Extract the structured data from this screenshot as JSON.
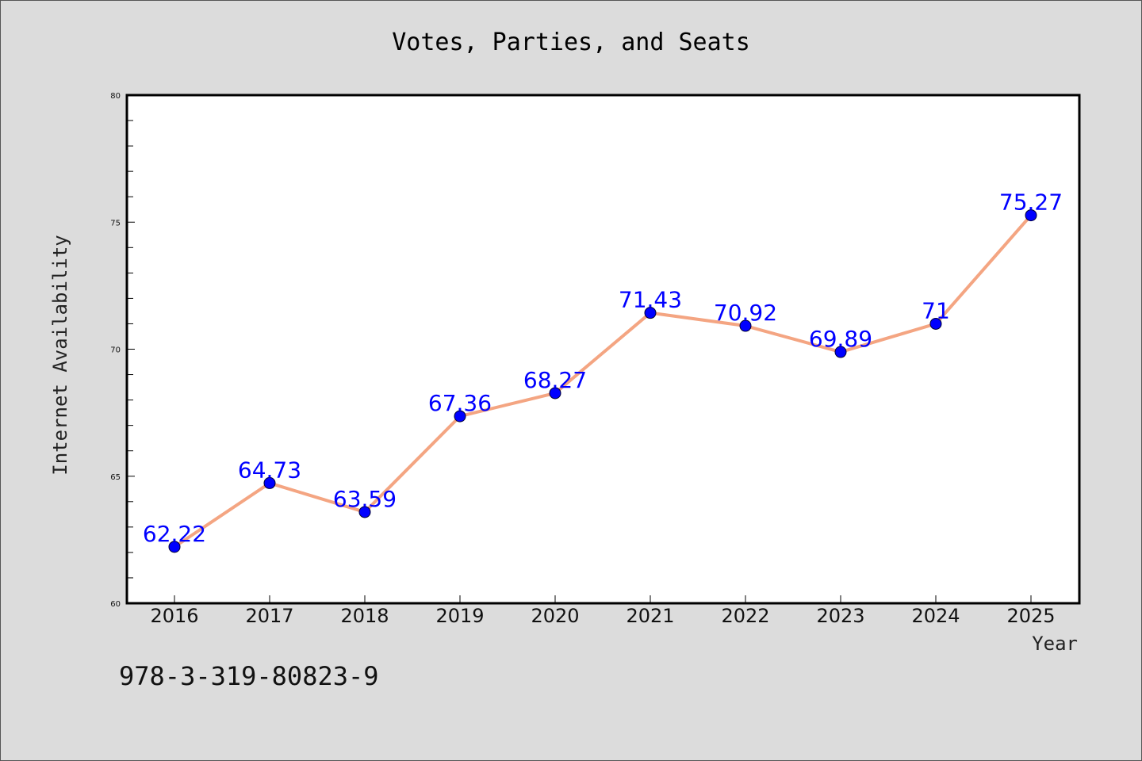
{
  "chart_data": {
    "type": "line",
    "title": "Votes, Parties, and Seats",
    "xlabel": "Year",
    "ylabel": "Internet Availability",
    "categories": [
      "2016",
      "2017",
      "2018",
      "2019",
      "2020",
      "2021",
      "2022",
      "2023",
      "2024",
      "2025"
    ],
    "series": [
      {
        "values": [
          62.22,
          64.73,
          63.59,
          67.36,
          68.27,
          71.43,
          70.92,
          69.89,
          71,
          75.27
        ],
        "data_labels": [
          "62.22",
          "64.73",
          "63.59",
          "67.36",
          "68.27",
          "71.43",
          "70.92",
          "69.89",
          "71",
          "75.27"
        ],
        "line_color": "#f4a582",
        "marker_color": "#0000ff"
      }
    ],
    "yticks": [
      "60",
      "65",
      "70",
      "75",
      "80"
    ],
    "ylim": [
      60,
      80
    ],
    "grid": false,
    "legend": "none"
  },
  "footnote": "978-3-319-80823-9"
}
